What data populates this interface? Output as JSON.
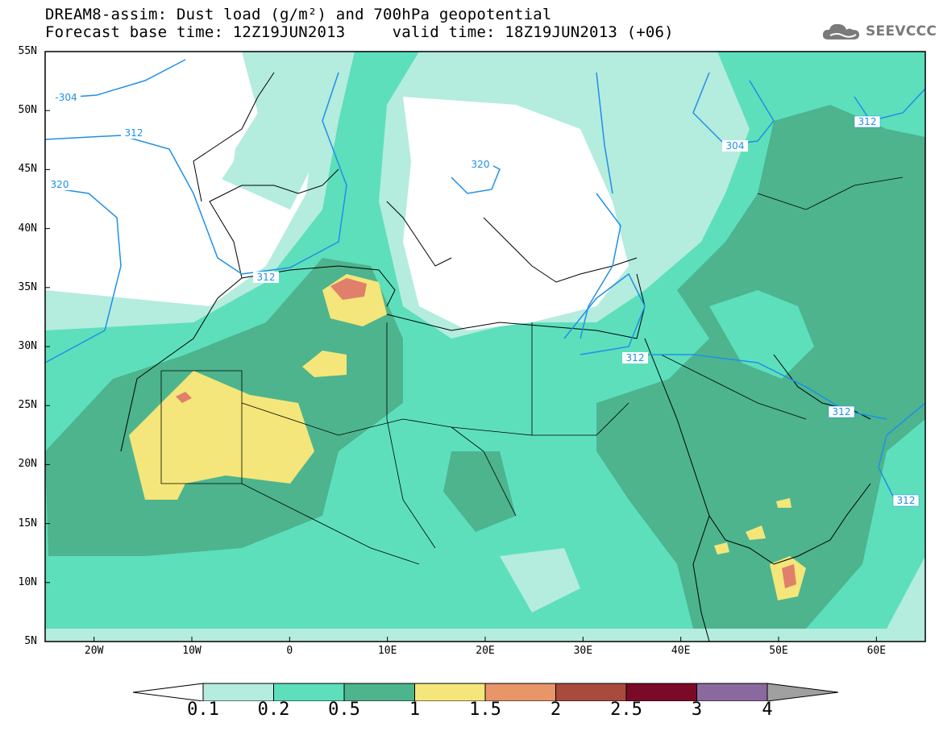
{
  "title": {
    "line1": "DREAM8-assim: Dust load (g/m²) and 700hPa geopotential",
    "line2": "Forecast base time: 12Z19JUN2013     valid time: 18Z19JUN2013 (+06)"
  },
  "logo": {
    "text": "SEEVCCC",
    "icon": "cloud-icon"
  },
  "axes": {
    "lat_labels": [
      "55N",
      "50N",
      "45N",
      "40N",
      "35N",
      "30N",
      "25N",
      "20N",
      "15N",
      "10N",
      "5N"
    ],
    "lon_labels": [
      "20W",
      "10W",
      "0",
      "10E",
      "20E",
      "30E",
      "40E",
      "50E",
      "60E"
    ],
    "lat_range": [
      5,
      55
    ],
    "lon_range": [
      -25,
      65
    ]
  },
  "contours": {
    "color": "#1e90e8",
    "labels": [
      "-304",
      "312",
      "320",
      "312",
      "320",
      "304",
      "312",
      "312",
      "312",
      "312"
    ]
  },
  "colorbar": {
    "labels": [
      "0.1",
      "0.2",
      "0.5",
      "1",
      "1.5",
      "2",
      "2.5",
      "3",
      "4"
    ],
    "colors": [
      "#b4ecde",
      "#5ddfbc",
      "#4db48e",
      "#f4e67a",
      "#e8956a",
      "#a84a3c",
      "#7a0a28",
      "#8a6a9e",
      "#a0a0a0"
    ]
  },
  "map_colors": {
    "low": "#b4ecde",
    "mid": "#5ddfbc",
    "high": "#4db48e",
    "yellow": "#f4e67a",
    "orange": "#e0806a"
  }
}
